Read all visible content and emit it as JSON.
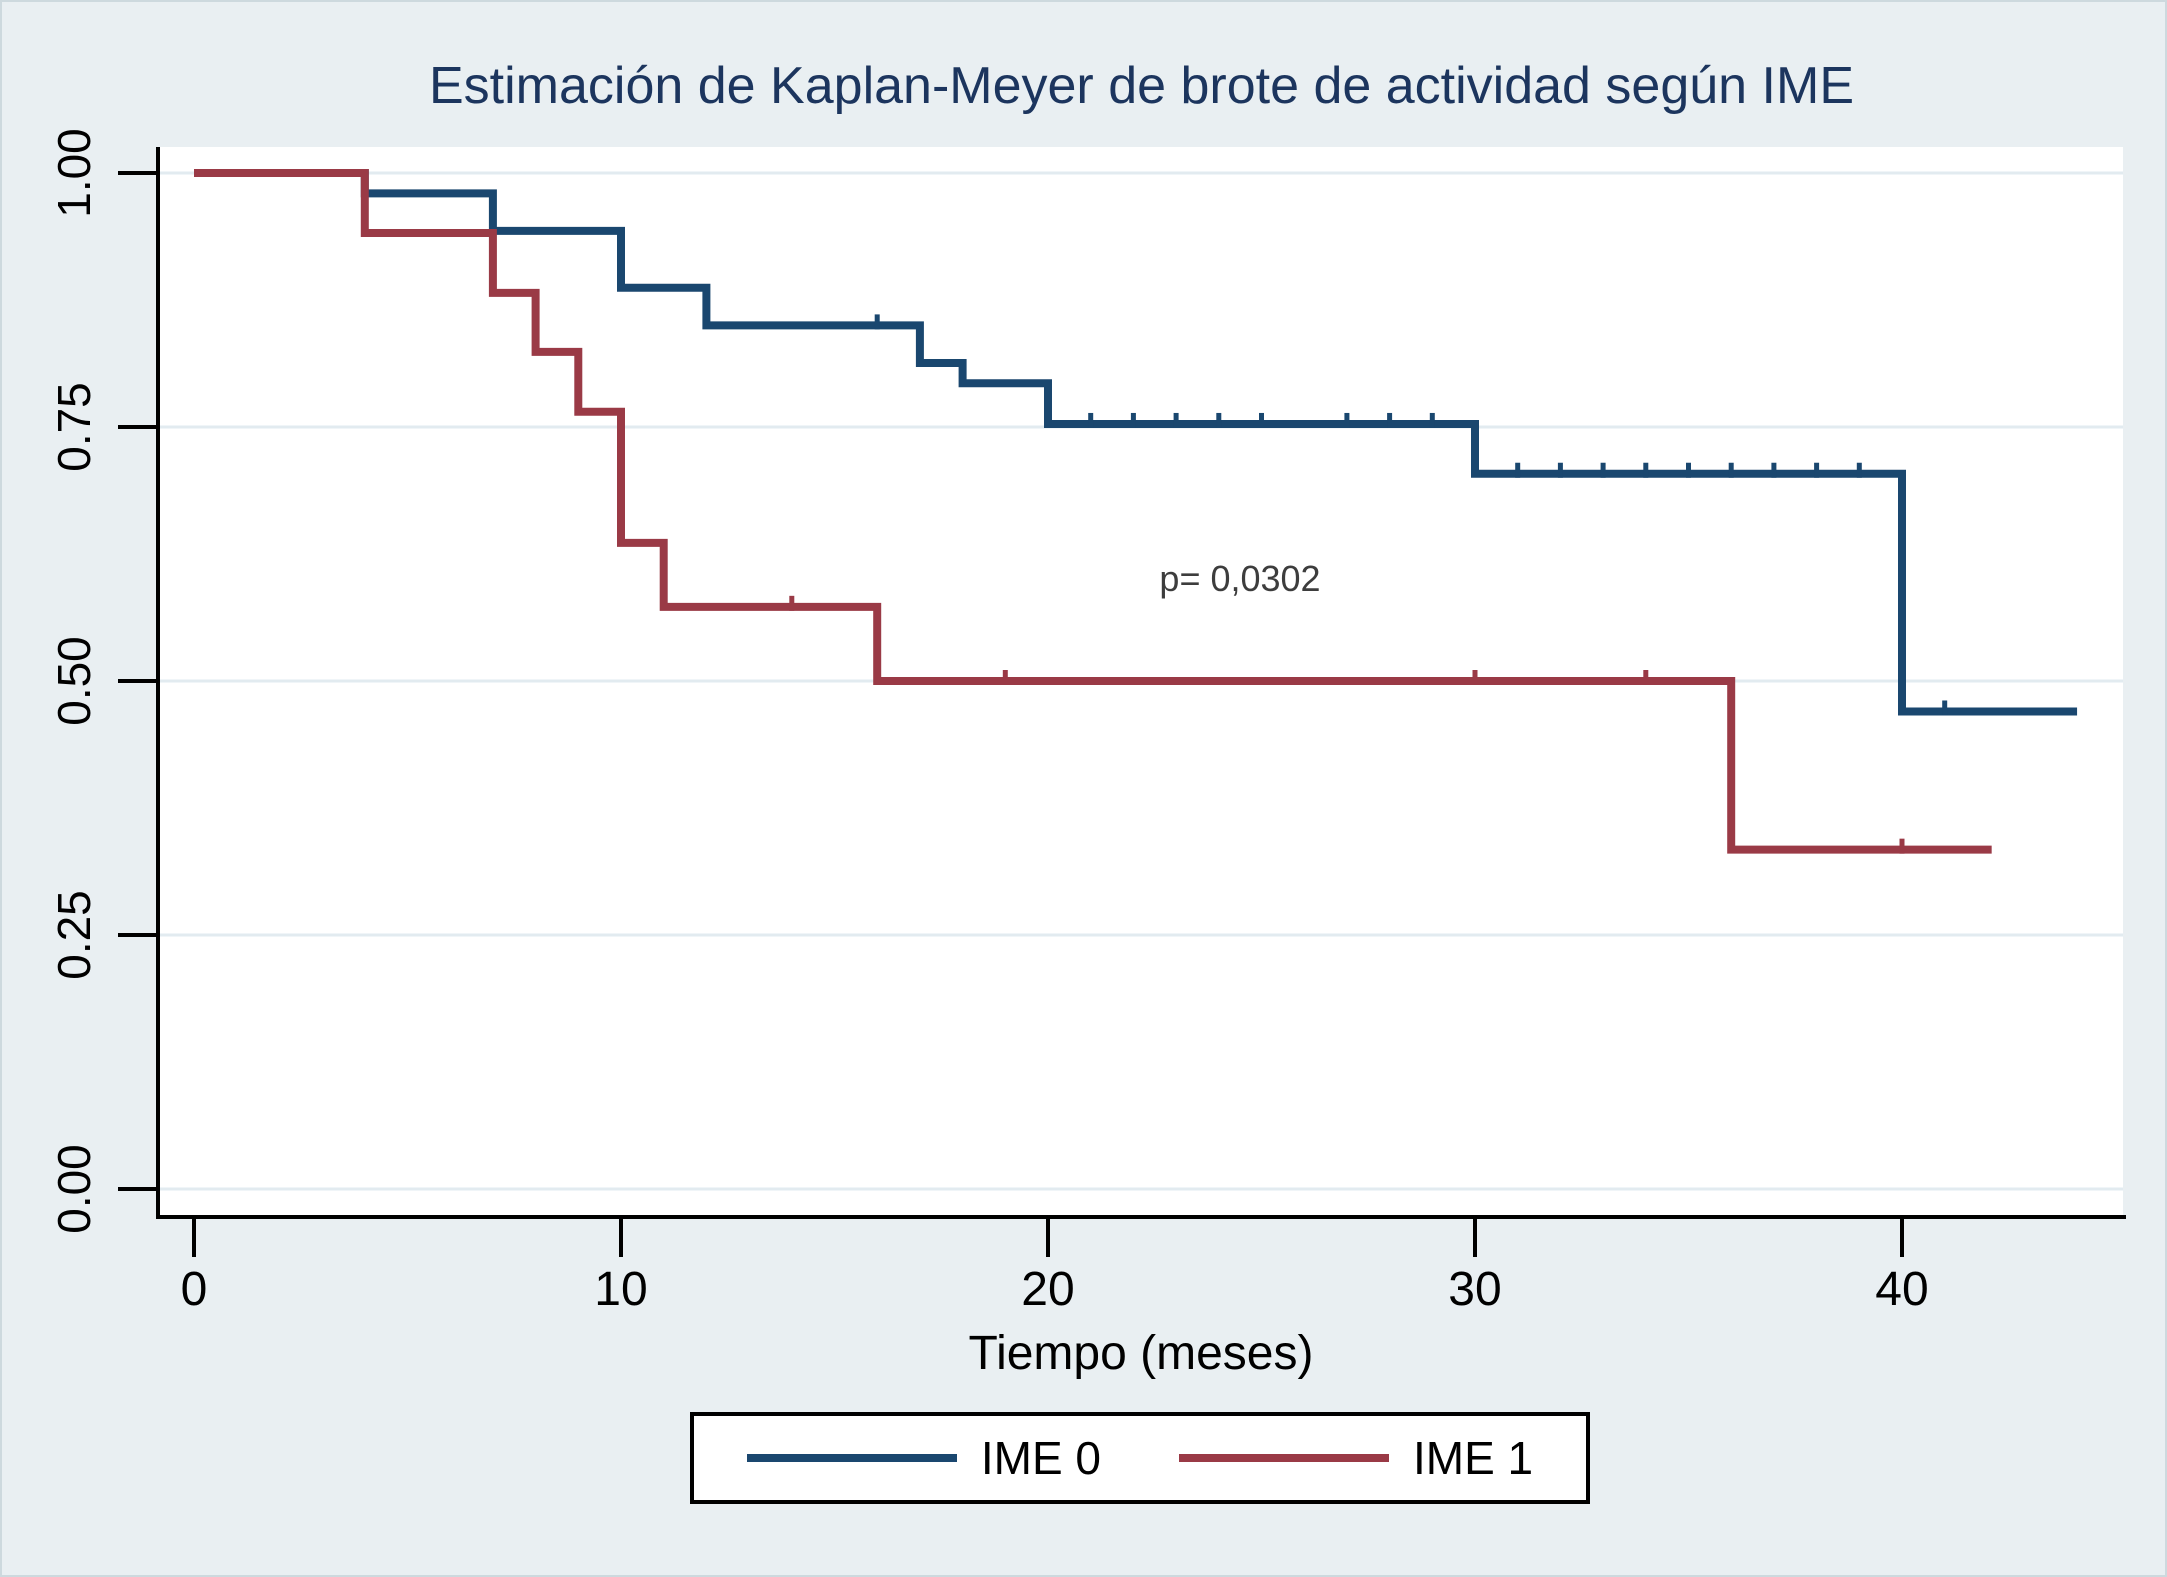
{
  "title": "Estimación de Kaplan-Meyer de brote de actividad según IME",
  "annotation": {
    "p_value_label": "p= 0,0302"
  },
  "x_axis": {
    "label": "Tiempo (meses)",
    "tick_labels": [
      "0",
      "10",
      "20",
      "30",
      "40"
    ],
    "tick_values": [
      0,
      10,
      20,
      30,
      40
    ]
  },
  "y_axis": {
    "tick_labels": [
      "1.00",
      "0.75",
      "0.50",
      "0.25",
      "0.00"
    ],
    "tick_values": [
      1.0,
      0.75,
      0.5,
      0.25,
      0.0
    ]
  },
  "legend": {
    "items": [
      {
        "label": "IME 0"
      },
      {
        "label": "IME 1"
      }
    ]
  },
  "colors": {
    "background": "#e9eff2",
    "plot_background": "#ffffff",
    "gridline": "#e2ebf0",
    "axis": "#000000",
    "title_text": "#1c355e",
    "ime0_line": "#1a476f",
    "ime1_line": "#9a3a46",
    "annotation_text": "#3d3d3d"
  },
  "chart_data": {
    "type": "line",
    "subtype": "kaplan-meier-step",
    "title": "Estimación de Kaplan-Meyer de brote de actividad según IME",
    "xlabel": "Tiempo (meses)",
    "ylabel": "",
    "xlim": [
      -0.8,
      45.2
    ],
    "ylim": [
      -0.026,
      1.026
    ],
    "xticks": [
      0,
      10,
      20,
      30,
      40
    ],
    "yticks": [
      0.0,
      0.25,
      0.5,
      0.75,
      1.0
    ],
    "grid": "horizontal-only",
    "legend_position": "bottom-center",
    "p_value_annotation": {
      "text": "p= 0,0302",
      "x": 24.5,
      "y": 0.6
    },
    "series": [
      {
        "name": "IME 0",
        "color": "#1a476f",
        "steps": [
          [
            0,
            1.0
          ],
          [
            4,
            0.98
          ],
          [
            7,
            0.943
          ],
          [
            10,
            0.887
          ],
          [
            12,
            0.85
          ],
          [
            17,
            0.813
          ],
          [
            18,
            0.793
          ],
          [
            20,
            0.753
          ],
          [
            30,
            0.704
          ],
          [
            40,
            0.47
          ]
        ],
        "end_time": 44.1,
        "censor_marks": [
          [
            16,
            0.85
          ],
          [
            21,
            0.753
          ],
          [
            22,
            0.753
          ],
          [
            23,
            0.753
          ],
          [
            24,
            0.753
          ],
          [
            25,
            0.753
          ],
          [
            27,
            0.753
          ],
          [
            28,
            0.753
          ],
          [
            29,
            0.753
          ],
          [
            31,
            0.704
          ],
          [
            32,
            0.704
          ],
          [
            33,
            0.704
          ],
          [
            34,
            0.704
          ],
          [
            35,
            0.704
          ],
          [
            36,
            0.704
          ],
          [
            37,
            0.704
          ],
          [
            38,
            0.704
          ],
          [
            39,
            0.704
          ],
          [
            41,
            0.47
          ]
        ]
      },
      {
        "name": "IME 1",
        "color": "#9a3a46",
        "steps": [
          [
            0,
            1.0
          ],
          [
            4,
            0.941
          ],
          [
            7,
            0.882
          ],
          [
            8,
            0.824
          ],
          [
            9,
            0.765
          ],
          [
            10,
            0.636
          ],
          [
            11,
            0.573
          ],
          [
            16,
            0.5
          ],
          [
            36,
            0.334
          ]
        ],
        "end_time": 42.1,
        "censor_marks": [
          [
            14,
            0.573
          ],
          [
            19,
            0.5
          ],
          [
            30,
            0.5
          ],
          [
            34,
            0.5
          ],
          [
            40,
            0.334
          ]
        ]
      }
    ]
  }
}
